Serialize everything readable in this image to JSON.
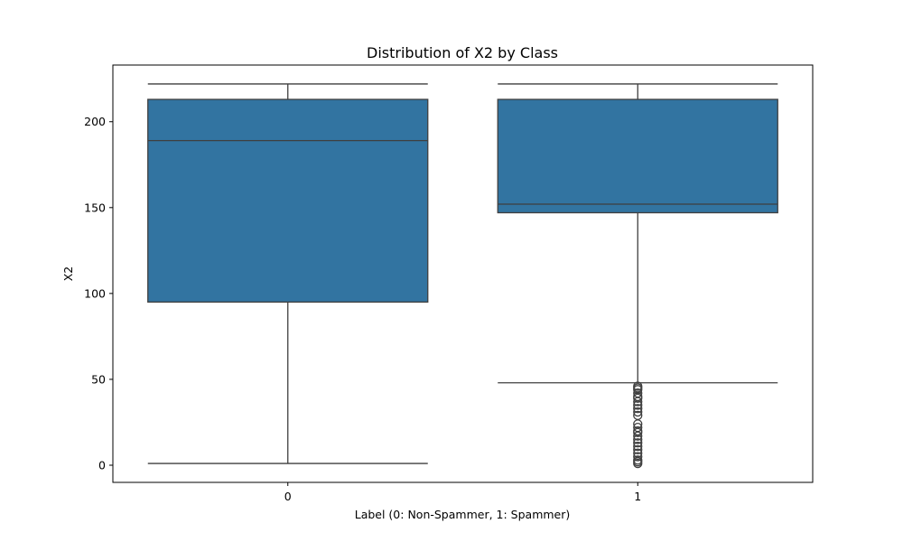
{
  "chart_data": {
    "type": "box",
    "title": "Distribution of X2 by Class",
    "xlabel": "Label (0: Non-Spammer, 1: Spammer)",
    "ylabel": "X2",
    "categories": [
      "0",
      "1"
    ],
    "ylim": [
      -10,
      233
    ],
    "yticks": [
      0,
      50,
      100,
      150,
      200
    ],
    "grid": false,
    "box_color": "#3274a1",
    "line_color": "#3f3f3f",
    "boxes": [
      {
        "category": "0",
        "whisker_low": 1,
        "q1": 95,
        "median": 189,
        "q3": 213,
        "whisker_high": 222,
        "outliers": []
      },
      {
        "category": "1",
        "whisker_low": 48,
        "q1": 147,
        "median": 152,
        "q3": 213,
        "whisker_high": 222,
        "outliers": [
          46,
          45,
          44,
          42,
          40,
          39,
          37,
          35,
          33,
          31,
          29,
          24,
          22,
          20,
          19,
          17,
          15,
          13,
          11,
          9,
          7,
          5,
          3,
          2,
          1
        ]
      }
    ]
  }
}
